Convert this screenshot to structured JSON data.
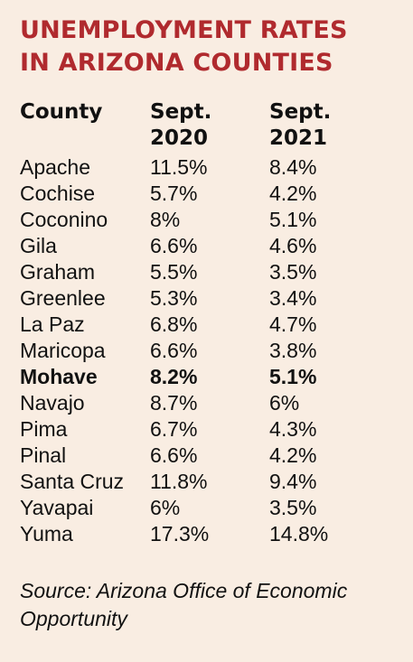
{
  "title": {
    "line1": "UNEMPLOYMENT RATES",
    "line2": "IN ARIZONA COUNTIES"
  },
  "table": {
    "headers": {
      "county": "County",
      "col2_line1": "Sept.",
      "col2_line2": "2020",
      "col3_line1": "Sept.",
      "col3_line2": "2021"
    },
    "rows": [
      {
        "county": "Apache",
        "sept_2020": "11.5%",
        "sept_2021": "8.4%",
        "highlight": false
      },
      {
        "county": "Cochise",
        "sept_2020": "5.7%",
        "sept_2021": "4.2%",
        "highlight": false
      },
      {
        "county": "Coconino",
        "sept_2020": "8%",
        "sept_2021": "5.1%",
        "highlight": false
      },
      {
        "county": "Gila",
        "sept_2020": "6.6%",
        "sept_2021": "4.6%",
        "highlight": false
      },
      {
        "county": "Graham",
        "sept_2020": "5.5%",
        "sept_2021": "3.5%",
        "highlight": false
      },
      {
        "county": "Greenlee",
        "sept_2020": "5.3%",
        "sept_2021": "3.4%",
        "highlight": false
      },
      {
        "county": "La Paz",
        "sept_2020": "6.8%",
        "sept_2021": "4.7%",
        "highlight": false
      },
      {
        "county": "Maricopa",
        "sept_2020": "6.6%",
        "sept_2021": "3.8%",
        "highlight": false
      },
      {
        "county": "Mohave",
        "sept_2020": "8.2%",
        "sept_2021": "5.1%",
        "highlight": true
      },
      {
        "county": "Navajo",
        "sept_2020": "8.7%",
        "sept_2021": "6%",
        "highlight": false
      },
      {
        "county": "Pima",
        "sept_2020": "6.7%",
        "sept_2021": "4.3%",
        "highlight": false
      },
      {
        "county": "Pinal",
        "sept_2020": "6.6%",
        "sept_2021": "4.2%",
        "highlight": false
      },
      {
        "county": "Santa Cruz",
        "sept_2020": "11.8%",
        "sept_2021": "9.4%",
        "highlight": false
      },
      {
        "county": "Yavapai",
        "sept_2020": "6%",
        "sept_2021": "3.5%",
        "highlight": false
      },
      {
        "county": "Yuma",
        "sept_2020": "17.3%",
        "sept_2021": "14.8%",
        "highlight": false
      }
    ]
  },
  "source": "Source: Arizona Office of Economic Opportunity",
  "colors": {
    "background": "#f9ede2",
    "title": "#b02a2e",
    "text": "#111111"
  }
}
